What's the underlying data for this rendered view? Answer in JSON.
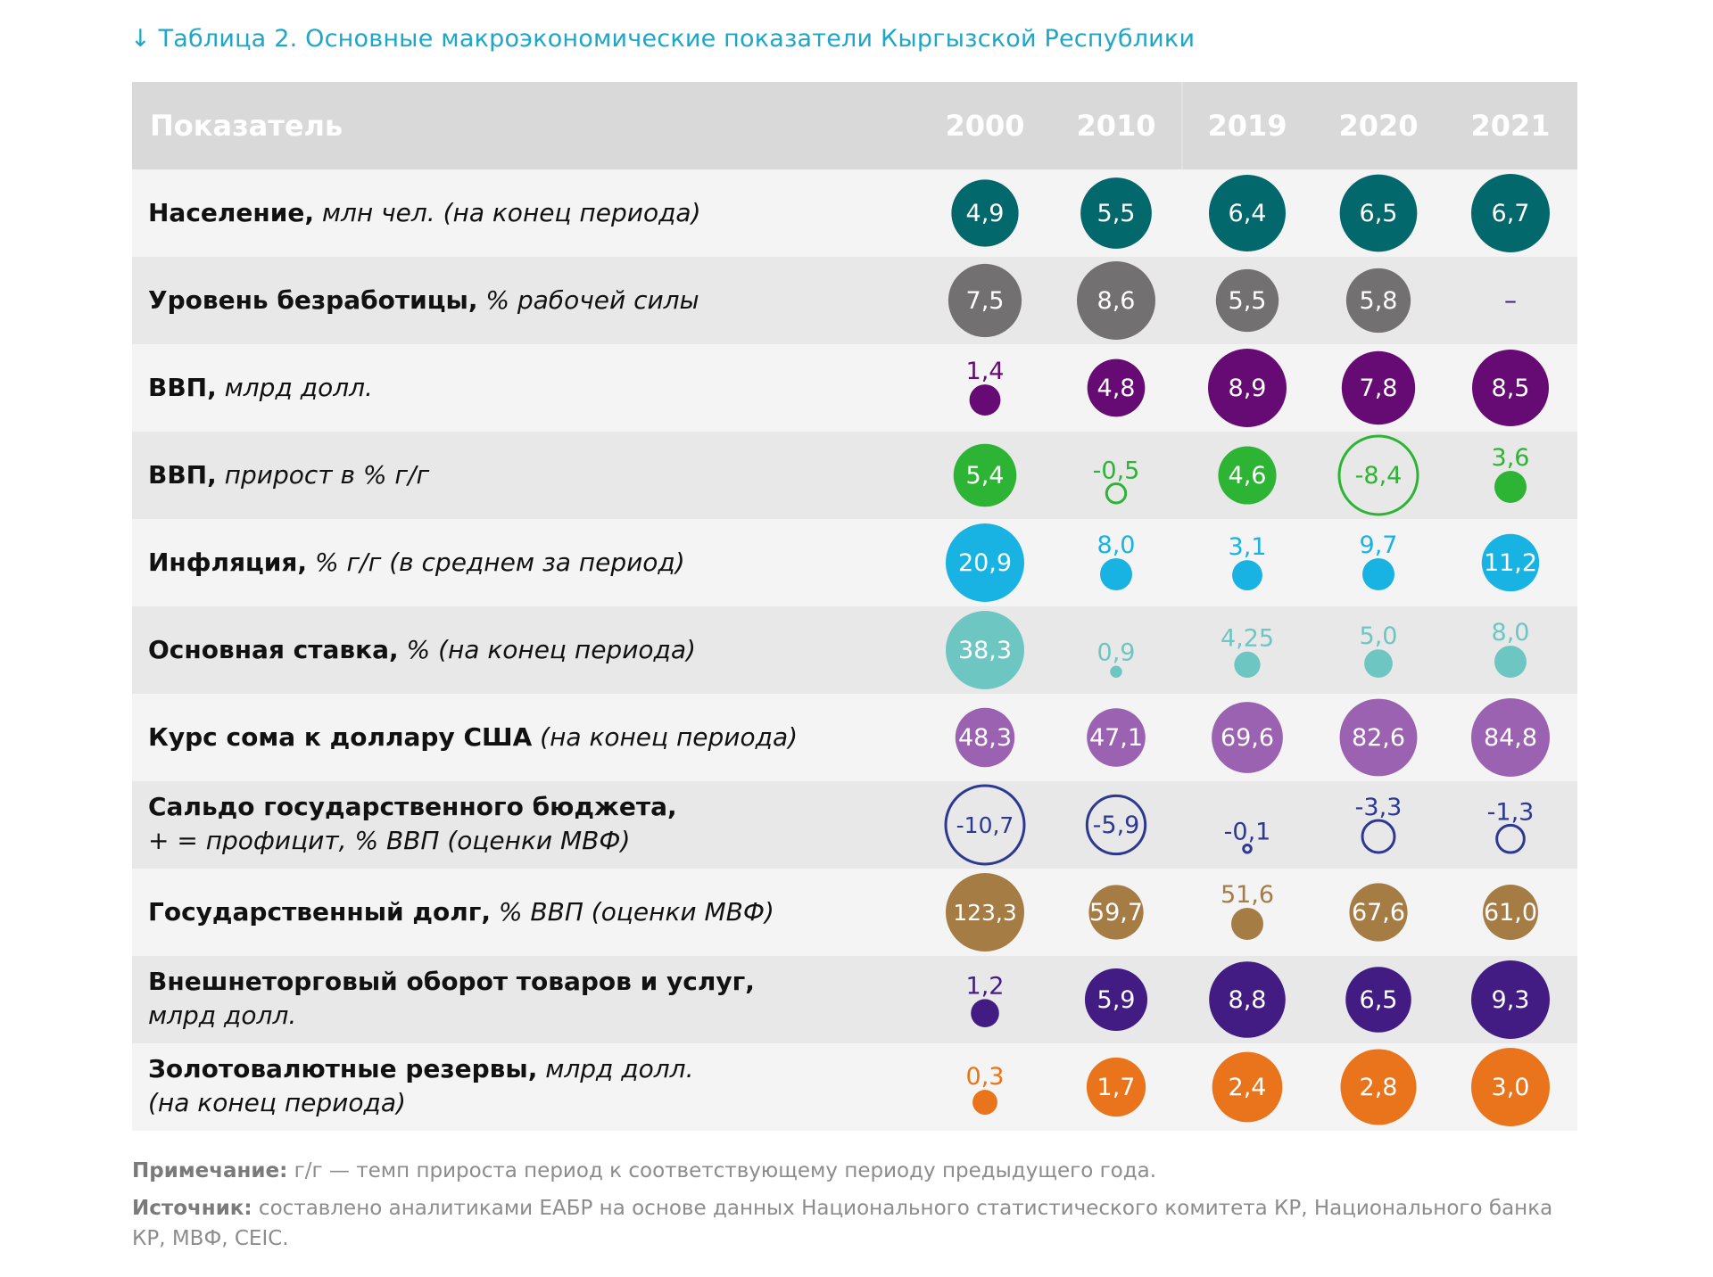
{
  "title": "↓ Таблица 2. Основные макроэкономические показатели Кыргызской Республики",
  "header": {
    "label": "Показатель",
    "years": [
      "2000",
      "2010",
      "2019",
      "2020",
      "2021"
    ]
  },
  "chart_data": {
    "type": "table",
    "title": "Таблица 2. Основные макроэкономические показатели Кыргызской Республики",
    "columns": [
      "2000",
      "2010",
      "2019",
      "2020",
      "2021"
    ],
    "rows": [
      {
        "name": "Население",
        "unit": "млн чел. (на конец периода)",
        "color": "#02686b",
        "values": [
          "4,9",
          "5,5",
          "6,4",
          "6,5",
          "6,7"
        ],
        "numeric": [
          4.9,
          5.5,
          6.4,
          6.5,
          6.7
        ]
      },
      {
        "name": "Уровень безработицы",
        "unit": "% рабочей силы",
        "color": "#727071",
        "values": [
          "7,5",
          "8,6",
          "5,5",
          "5,8",
          "–"
        ],
        "numeric": [
          7.5,
          8.6,
          5.5,
          5.8,
          null
        ]
      },
      {
        "name": "ВВП",
        "unit": "млрд долл.",
        "color": "#660b73",
        "values": [
          "1,4",
          "4,8",
          "8,9",
          "7,8",
          "8,5"
        ],
        "numeric": [
          1.4,
          4.8,
          8.9,
          7.8,
          8.5
        ]
      },
      {
        "name": "ВВП",
        "unit": "прирост в % г/г",
        "color": "#2db434",
        "values": [
          "5,4",
          "-0,5",
          "4,6",
          "-8,4",
          "3,6"
        ],
        "numeric": [
          5.4,
          -0.5,
          4.6,
          -8.4,
          3.6
        ]
      },
      {
        "name": "Инфляция",
        "unit": "% г/г (в среднем за период)",
        "color": "#19b3e3",
        "values": [
          "20,9",
          "8,0",
          "3,1",
          "9,7",
          "11,2"
        ],
        "numeric": [
          20.9,
          8.0,
          3.1,
          9.7,
          11.2
        ]
      },
      {
        "name": "Основная ставка",
        "unit": "% (на конец периода)",
        "color": "#6ec6c3",
        "values": [
          "38,3",
          "0,9",
          "4,25",
          "5,0",
          "8,0"
        ],
        "numeric": [
          38.3,
          0.9,
          4.25,
          5.0,
          8.0
        ]
      },
      {
        "name": "Курс сома к доллару США",
        "unit": "(на конец периода)",
        "color": "#9a62b0",
        "values": [
          "48,3",
          "47,1",
          "69,6",
          "82,6",
          "84,8"
        ],
        "numeric": [
          48.3,
          47.1,
          69.6,
          82.6,
          84.8
        ]
      },
      {
        "name": "Сальдо государственного бюджета,",
        "unit2": "+ = профицит, % ВВП (оценки МВФ)",
        "color": "#2c3892",
        "values": [
          "-10,7",
          "-5,9",
          "-0,1",
          "-3,3",
          "-1,3"
        ],
        "numeric": [
          -10.7,
          -5.9,
          -0.1,
          -3.3,
          -1.3
        ]
      },
      {
        "name": "Государственный долг",
        "unit": "% ВВП (оценки МВФ)",
        "color": "#a67c45",
        "values": [
          "123,3",
          "59,7",
          "51,6",
          "67,6",
          "61,0"
        ],
        "numeric": [
          123.3,
          59.7,
          51.6,
          67.6,
          61.0
        ]
      },
      {
        "name": "Внешнеторговый оборот товаров и услуг,",
        "unit2": "млрд долл.",
        "color": "#421c83",
        "values": [
          "1,2",
          "5,9",
          "8,8",
          "6,5",
          "9,3"
        ],
        "numeric": [
          1.2,
          5.9,
          8.8,
          6.5,
          9.3
        ]
      },
      {
        "name": "Золотовалютные резервы,",
        "unit": "млрд долл.",
        "unit2": "(на конец периода)",
        "color": "#e9741b",
        "values": [
          "0,3",
          "1,7",
          "2,4",
          "2,8",
          "3,0"
        ],
        "numeric": [
          0.3,
          1.7,
          2.4,
          2.8,
          3.0
        ]
      }
    ]
  },
  "notes": {
    "note_label": "Примечание:",
    "note_text": " г/г — темп прироста период к соответствующему периоду предыдущего года.",
    "source_label": "Источник:",
    "source_text": " составлено аналитиками ЕАБР на основе данных Национального статистического комитета КР, Национального банка КР, МВФ, CEIC."
  }
}
